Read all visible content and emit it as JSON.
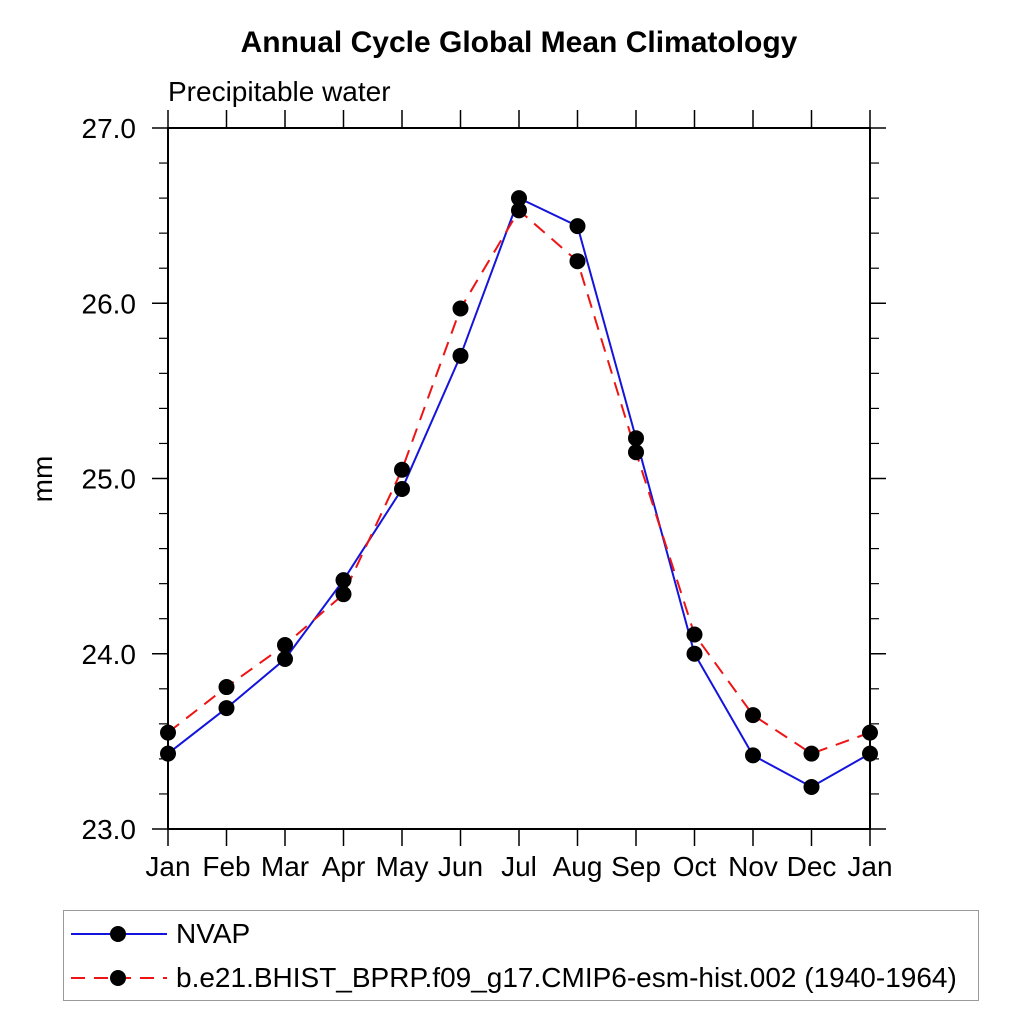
{
  "page": {
    "background": "#ffffff"
  },
  "chart_data": {
    "type": "line",
    "title": "Annual Cycle Global Mean Climatology",
    "subtitle": "Precipitable water",
    "ylabel": "mm",
    "xlabel": "",
    "categories": [
      "Jan",
      "Feb",
      "Mar",
      "Apr",
      "May",
      "Jun",
      "Jul",
      "Aug",
      "Sep",
      "Oct",
      "Nov",
      "Dec",
      "Jan"
    ],
    "ylim": [
      23.0,
      27.0
    ],
    "ytick_major": [
      23.0,
      24.0,
      25.0,
      26.0,
      27.0
    ],
    "ytick_major_labels": [
      "23.0",
      "24.0",
      "25.0",
      "26.0",
      "27.0"
    ],
    "ytick_minor_step": 0.2,
    "grid": false,
    "legend_position": "bottom-left-box",
    "axis_color": "#000000",
    "marker_color": "#000000",
    "series": [
      {
        "name": "NVAP",
        "color": "#1414dc",
        "style": "solid",
        "marker": "circle",
        "values": [
          23.43,
          23.69,
          23.97,
          24.42,
          24.94,
          25.7,
          26.6,
          26.44,
          25.23,
          24.0,
          23.42,
          23.24,
          23.43
        ]
      },
      {
        "name": "b.e21.BHIST_BPRP.f09_g17.CMIP6-esm-hist.002 (1940-1964)",
        "color": "#ee1414",
        "style": "dashed",
        "marker": "circle",
        "values": [
          23.55,
          23.81,
          24.05,
          24.34,
          25.05,
          25.97,
          26.53,
          26.24,
          25.15,
          24.11,
          23.65,
          23.43,
          23.55
        ]
      }
    ]
  }
}
